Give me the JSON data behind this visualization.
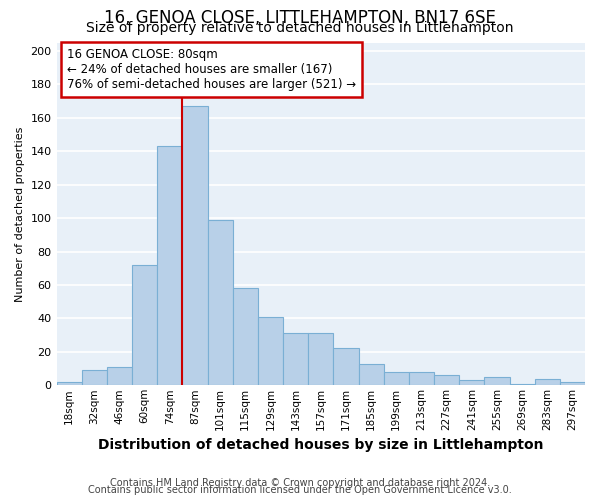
{
  "title": "16, GENOA CLOSE, LITTLEHAMPTON, BN17 6SE",
  "subtitle": "Size of property relative to detached houses in Littlehampton",
  "xlabel": "Distribution of detached houses by size in Littlehampton",
  "ylabel": "Number of detached properties",
  "footnote1": "Contains HM Land Registry data © Crown copyright and database right 2024.",
  "footnote2": "Contains public sector information licensed under the Open Government Licence v3.0.",
  "categories": [
    "18sqm",
    "32sqm",
    "46sqm",
    "60sqm",
    "74sqm",
    "87sqm",
    "101sqm",
    "115sqm",
    "129sqm",
    "143sqm",
    "157sqm",
    "171sqm",
    "185sqm",
    "199sqm",
    "213sqm",
    "227sqm",
    "241sqm",
    "255sqm",
    "269sqm",
    "283sqm",
    "297sqm"
  ],
  "values": [
    2,
    9,
    11,
    72,
    143,
    167,
    99,
    58,
    41,
    31,
    31,
    22,
    13,
    8,
    8,
    6,
    3,
    5,
    1,
    4,
    2
  ],
  "bar_color": "#b8d0e8",
  "bar_edge_color": "#7aafd4",
  "background_color": "#e8f0f8",
  "grid_color": "#ffffff",
  "vline_color": "#cc0000",
  "annotation_line1": "16 GENOA CLOSE: 80sqm",
  "annotation_line2": "← 24% of detached houses are smaller (167)",
  "annotation_line3": "76% of semi-detached houses are larger (521) →",
  "annotation_box_color": "#cc0000",
  "ylim": [
    0,
    205
  ],
  "yticks": [
    0,
    20,
    40,
    60,
    80,
    100,
    120,
    140,
    160,
    180,
    200
  ],
  "title_fontsize": 12,
  "subtitle_fontsize": 10,
  "xlabel_fontsize": 10,
  "ylabel_fontsize": 8
}
